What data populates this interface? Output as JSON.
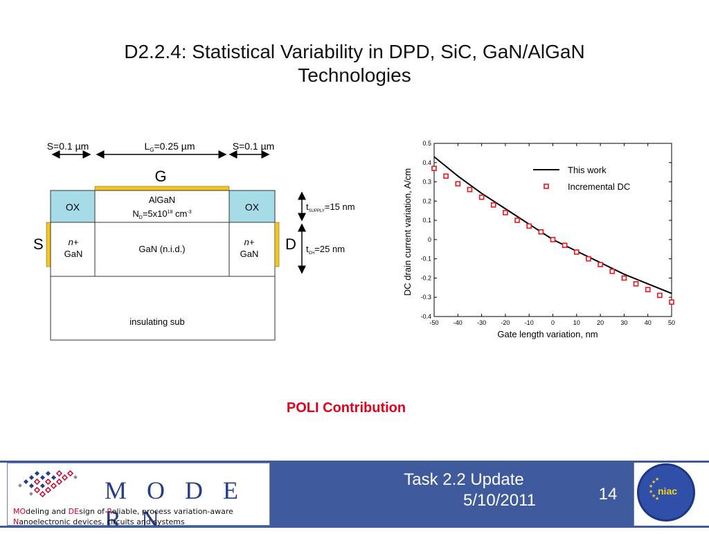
{
  "title": {
    "line1": "D2.2.4: Statistical Variability in DPD, SiC, GaN/AlGaN",
    "line2": "Technologies"
  },
  "diagram": {
    "dim_left": "S=0.1 µm",
    "dim_center": "L",
    "dim_center_sub": "G",
    "dim_center_value": "=0.25 µm",
    "dim_right": "S=0.1 µm",
    "gate": "G",
    "ox_left": "OX",
    "ox_right": "OX",
    "algan_line1": "AlGaN",
    "algan_nd": "N",
    "algan_nd_sub": "D",
    "algan_value": "=5x10",
    "algan_exp": "18",
    "algan_unit": "cm",
    "algan_unit_exp": "-3",
    "source": "S",
    "drain": "D",
    "n_left_1": "n+",
    "n_left_2": "GaN",
    "n_right_1": "n+",
    "n_right_2": "GaN",
    "channel": "GaN (n.i.d.)",
    "substrate": "insulating sub",
    "t_supply": "t",
    "t_supply_sub": "SUPPLY",
    "t_supply_value": "=15 nm",
    "t_ch": "t",
    "t_ch_sub": "CH",
    "t_ch_value": "=25 nm"
  },
  "chart_data": {
    "type": "line",
    "xlabel": "Gate length variation, nm",
    "ylabel": "DC drain current variation, A/cm",
    "xlim": [
      -50,
      50
    ],
    "ylim": [
      -0.4,
      0.5
    ],
    "xticks": [
      "-50",
      "-40",
      "-30",
      "-20",
      "-10",
      "0",
      "10",
      "20",
      "30",
      "40",
      "50"
    ],
    "yticks": [
      "-0.4",
      "-0.3",
      "-0.2",
      "-0.1",
      "0",
      "0.1",
      "0.2",
      "0.3",
      "0.4",
      "0.5"
    ],
    "legend_position": "top-right",
    "grid": false,
    "series": [
      {
        "name": "This work",
        "style": "line",
        "color": "#000000",
        "x": [
          -50,
          -40,
          -30,
          -20,
          -10,
          0,
          10,
          20,
          30,
          40,
          50
        ],
        "y": [
          0.43,
          0.33,
          0.24,
          0.16,
          0.08,
          0.0,
          -0.06,
          -0.12,
          -0.18,
          -0.23,
          -0.28
        ]
      },
      {
        "name": "Incremental DC",
        "style": "marker",
        "color": "#e8151b",
        "x": [
          -50,
          -45,
          -40,
          -35,
          -30,
          -25,
          -20,
          -15,
          -10,
          -5,
          0,
          5,
          10,
          15,
          20,
          25,
          30,
          35,
          40,
          45,
          50
        ],
        "y": [
          0.37,
          0.33,
          0.29,
          0.26,
          0.22,
          0.18,
          0.14,
          0.1,
          0.07,
          0.04,
          0.0,
          -0.03,
          -0.065,
          -0.1,
          -0.13,
          -0.165,
          -0.2,
          -0.23,
          -0.26,
          -0.29,
          -0.325
        ]
      }
    ]
  },
  "poli": "POLI Contribution",
  "footer": {
    "logo_word": "M O D E R N",
    "tagline_line1_a": "MO",
    "tagline_line1_b": "deling and ",
    "tagline_line1_c": "DE",
    "tagline_line1_d": "sign of ",
    "tagline_line1_e": "R",
    "tagline_line1_f": "eliable, process variation-aware",
    "tagline_line2_a": "N",
    "tagline_line2_b": "anoelectronic devices, circuits and systems",
    "task_line1": "Task 2.2 Update",
    "task_line2": "5/10/2011",
    "page_number": "14",
    "niac_logo": "niac",
    "colors": {
      "bar": "#3f5a9d",
      "accent_red": "#d0002a",
      "brand_blue": "#253e8a"
    }
  }
}
